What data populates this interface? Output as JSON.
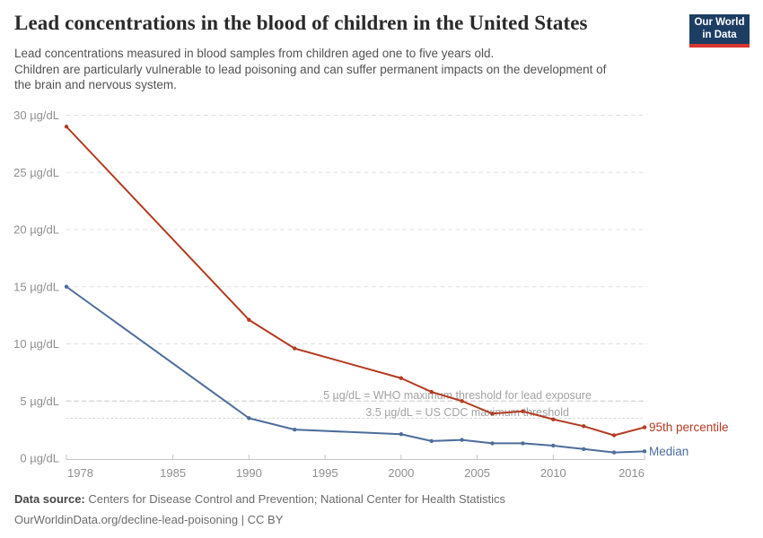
{
  "header": {
    "title": "Lead concentrations in the blood of children in the United States",
    "subtitle_lines": [
      "Lead concentrations measured in blood samples from children aged one to five years old.",
      "Children are particularly vulnerable to lead poisoning and can suffer permanent impacts on the development of",
      "the brain and nervous system."
    ],
    "logo": {
      "line1": "Our World",
      "line2": "in Data",
      "bg_color": "#1d3d63",
      "bar_color": "#d8352e"
    }
  },
  "chart_data": {
    "type": "line",
    "title": "Lead concentrations in the blood of children in the United States",
    "x": [
      1978,
      1990,
      1993,
      2000,
      2002,
      2004,
      2006,
      2008,
      2010,
      2012,
      2014,
      2016
    ],
    "series": [
      {
        "name": "95th percentile",
        "color": "#b23b21",
        "values": [
          29,
          12.1,
          9.6,
          7.0,
          5.8,
          5.0,
          3.9,
          4.1,
          3.4,
          2.8,
          2.0,
          2.7
        ]
      },
      {
        "name": "Median",
        "color": "#4d6d9c",
        "values": [
          15,
          3.5,
          2.5,
          2.1,
          1.5,
          1.6,
          1.3,
          1.3,
          1.1,
          0.8,
          0.5,
          0.6
        ]
      }
    ],
    "x_ticks": [
      1978,
      1985,
      1990,
      1995,
      2000,
      2005,
      2010,
      2016
    ],
    "y_ticks": [
      0,
      5,
      10,
      15,
      20,
      25,
      30
    ],
    "y_tick_suffix": " µg/dL",
    "xlim": [
      1978,
      2016
    ],
    "ylim": [
      0,
      30
    ],
    "grid": "horizontal-dashed",
    "legend_position": "line-end",
    "thresholds": [
      {
        "value": 5,
        "label": "5 µg/dL = WHO maximum threshold for lead exposure",
        "style": "dashed"
      },
      {
        "value": 3.5,
        "label": "3.5 µg/dL = US CDC maximum threshold",
        "style": "dotted"
      }
    ],
    "axis_color": "#c4c4c4",
    "grid_color": "#e0e0e0",
    "tick_label_color": "#8f8f8f",
    "threshold_label_color": "#a2a2a2"
  },
  "footer": {
    "source_label": "Data source:",
    "source_text": " Centers for Disease Control and Prevention; National Center for Health Statistics",
    "link_text": "OurWorldinData.org/decline-lead-poisoning | CC BY"
  }
}
